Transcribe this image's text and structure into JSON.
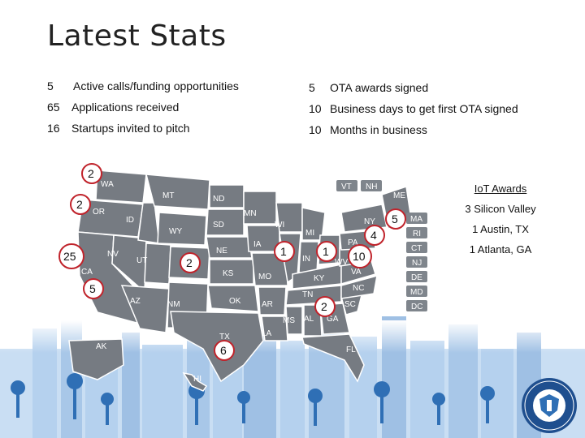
{
  "title": "Latest Stats",
  "left_stats": [
    {
      "num": "5",
      "label": "Active calls/funding opportunities"
    },
    {
      "num": "65",
      "label": "Applications received"
    },
    {
      "num": "16",
      "label": "Startups invited to pitch"
    }
  ],
  "right_stats": [
    {
      "num": "5",
      "label": "OTA awards signed"
    },
    {
      "num": "10",
      "label": "Business days to get first OTA signed"
    },
    {
      "num": "10",
      "label": "Months in business"
    }
  ],
  "state_labels": {
    "WA": "WA",
    "OR": "OR",
    "CA": "CA",
    "NV": "NV",
    "ID": "ID",
    "MT": "MT",
    "WY": "WY",
    "UT": "UT",
    "AZ": "AZ",
    "NM": "NM",
    "CO": "CO",
    "ND": "ND",
    "SD": "SD",
    "NE": "NE",
    "KS": "KS",
    "OK": "OK",
    "TX": "TX",
    "MN": "MN",
    "IA": "IA",
    "MO": "MO",
    "AR": "AR",
    "LA": "LA",
    "WI": "WI",
    "IL": "IL",
    "MI": "MI",
    "IN": "IN",
    "OH": "OH",
    "KY": "KY",
    "TN": "TN",
    "MS": "MS",
    "AL": "AL",
    "GA": "GA",
    "FL": "FL",
    "SC": "SC",
    "NC": "NC",
    "VA": "VA",
    "WV": "WV",
    "PA": "PA",
    "NY": "NY",
    "ME": "ME",
    "AK": "AK",
    "HI": "HI",
    "VT": "VT",
    "NH": "NH",
    "MA": "MA",
    "RI": "RI",
    "CT": "CT",
    "NJ": "NJ",
    "DE": "DE",
    "MD": "MD",
    "DC": "DC"
  },
  "state_counts": [
    {
      "state": "WA",
      "count": "2"
    },
    {
      "state": "OR",
      "count": "2"
    },
    {
      "state": "CA-north",
      "count": "25"
    },
    {
      "state": "CA-south",
      "count": "5"
    },
    {
      "state": "CO",
      "count": "2"
    },
    {
      "state": "TX",
      "count": "6"
    },
    {
      "state": "IL",
      "count": "1"
    },
    {
      "state": "OH",
      "count": "1"
    },
    {
      "state": "GA",
      "count": "2"
    },
    {
      "state": "VA",
      "count": "10"
    },
    {
      "state": "NY",
      "count": "4"
    },
    {
      "state": "ME",
      "count": "5"
    }
  ],
  "iot_awards": {
    "heading": "IoT Awards",
    "lines": [
      "3 Silicon Valley",
      "1 Austin, TX",
      "1 Atlanta, GA"
    ]
  },
  "colors": {
    "map_fill": "#7a7f85",
    "count_circle_stroke": "#c0232b",
    "awards_text": "#111111",
    "accent_blue": "#2f6fb5",
    "skyline": "#a9c9ea"
  },
  "seal_icon": "dhs-seal-icon"
}
